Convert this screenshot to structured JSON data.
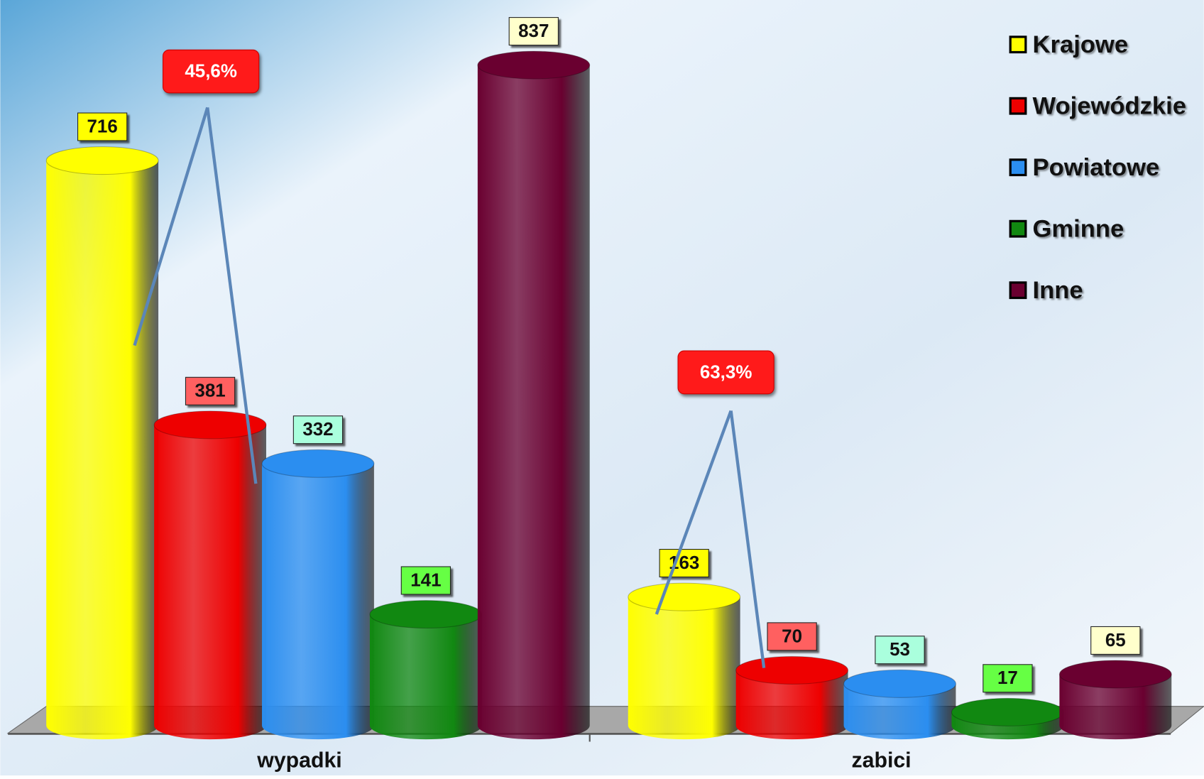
{
  "chart_data": {
    "type": "bar",
    "categories": [
      "wypadki",
      "zabici"
    ],
    "series": [
      {
        "name": "Krajowe",
        "color": "#ffff00",
        "values": [
          716,
          163
        ]
      },
      {
        "name": "Wojewódzkie",
        "color": "#ee0000",
        "values": [
          381,
          70
        ]
      },
      {
        "name": "Powiatowe",
        "color": "#2b8ef0",
        "values": [
          332,
          53
        ]
      },
      {
        "name": "Gminne",
        "color": "#118811",
        "values": [
          141,
          17
        ]
      },
      {
        "name": "Inne",
        "color": "#6a0030",
        "values": [
          837,
          65
        ]
      }
    ],
    "ylim": [
      0,
      900
    ],
    "annotations": [
      "45,6%",
      "63,3%"
    ],
    "legend": "top-right"
  }
}
